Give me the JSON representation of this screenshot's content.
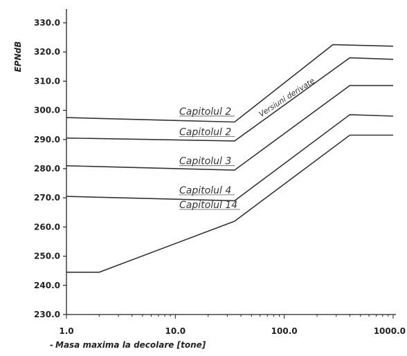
{
  "chart_data": {
    "type": "line",
    "xscale": "log",
    "xlim": [
      1.0,
      1000.0
    ],
    "ylim": [
      230.0,
      330.0
    ],
    "xticks": [
      "1.0",
      "10.0",
      "100.0",
      "1000.0"
    ],
    "yticks": [
      "230.0",
      "240.0",
      "250.0",
      "260.0",
      "270.0",
      "280.0",
      "290.0",
      "300.0",
      "310.0",
      "320.0",
      "330.0"
    ],
    "ylabel": "EPNdB",
    "xlabel": "Masa maxima la decolare [tone]",
    "grid": false,
    "series": [
      {
        "name": "Capitolul 2",
        "label_at": [
          15.0,
          298.5
        ],
        "x": [
          1.0,
          35.0,
          280.0,
          1000.0
        ],
        "y": [
          297.5,
          296.0,
          322.5,
          322.0
        ]
      },
      {
        "name": "Capitolul 2",
        "label_at": [
          15.0,
          291.5
        ],
        "x": [
          1.0,
          35.0,
          400.0,
          1000.0
        ],
        "y": [
          290.5,
          289.5,
          318.0,
          317.5
        ]
      },
      {
        "name": "Capitolul 3",
        "label_at": [
          15.0,
          281.5
        ],
        "x": [
          1.0,
          35.0,
          400.0,
          1000.0
        ],
        "y": [
          281.0,
          279.5,
          308.5,
          308.5
        ]
      },
      {
        "name": "Capitolul 4",
        "label_at": [
          15.0,
          271.5
        ],
        "x": [
          1.0,
          35.0,
          400.0,
          1000.0
        ],
        "y": [
          270.5,
          269.0,
          298.5,
          298.0
        ]
      },
      {
        "name": "Capitolul 14",
        "label_at": [
          15.0,
          266.5
        ],
        "x": [
          1.0,
          2.0,
          35.0,
          400.0,
          1000.0
        ],
        "y": [
          244.5,
          244.5,
          262.0,
          291.5,
          291.5
        ]
      }
    ],
    "annotations": [
      {
        "text": "Versiuni derivate",
        "x": 110.0,
        "y": 301.0,
        "rotation": -33
      }
    ]
  }
}
